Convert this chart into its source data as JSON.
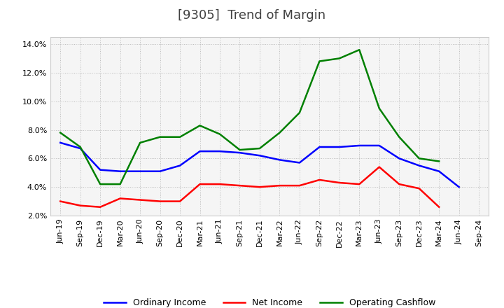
{
  "title": "[9305]  Trend of Margin",
  "x_labels": [
    "Jun-19",
    "Sep-19",
    "Dec-19",
    "Mar-20",
    "Jun-20",
    "Sep-20",
    "Dec-20",
    "Mar-21",
    "Jun-21",
    "Sep-21",
    "Dec-21",
    "Mar-22",
    "Jun-22",
    "Sep-22",
    "Dec-22",
    "Mar-23",
    "Jun-23",
    "Sep-23",
    "Dec-23",
    "Mar-24",
    "Jun-24",
    "Sep-24"
  ],
  "ordinary_income": [
    7.1,
    6.7,
    5.2,
    5.1,
    5.1,
    5.1,
    5.5,
    6.5,
    6.5,
    6.4,
    6.2,
    5.9,
    5.7,
    6.8,
    6.8,
    6.9,
    6.9,
    6.0,
    5.5,
    5.1,
    4.0,
    null
  ],
  "net_income": [
    3.0,
    2.7,
    2.6,
    3.2,
    3.1,
    3.0,
    3.0,
    4.2,
    4.2,
    4.1,
    4.0,
    4.1,
    4.1,
    4.5,
    4.3,
    4.2,
    5.4,
    4.2,
    3.9,
    2.6,
    null,
    null
  ],
  "operating_cashflow": [
    7.8,
    6.8,
    4.2,
    4.2,
    7.1,
    7.5,
    7.5,
    8.3,
    7.7,
    6.6,
    6.7,
    7.8,
    9.2,
    12.8,
    13.0,
    13.6,
    9.5,
    7.5,
    6.0,
    5.8,
    null,
    null
  ],
  "ordinary_income_color": "#0000ff",
  "net_income_color": "#ff0000",
  "operating_cashflow_color": "#008000",
  "ylim_min": 2.0,
  "ylim_max": 14.5,
  "yticks": [
    2.0,
    4.0,
    6.0,
    8.0,
    10.0,
    12.0,
    14.0
  ],
  "background_color": "#ffffff",
  "plot_bg_color": "#f5f5f5",
  "grid_color": "#bbbbbb",
  "title_color": "#404040",
  "title_fontsize": 13,
  "legend_fontsize": 9,
  "axis_fontsize": 8,
  "line_width": 1.8
}
